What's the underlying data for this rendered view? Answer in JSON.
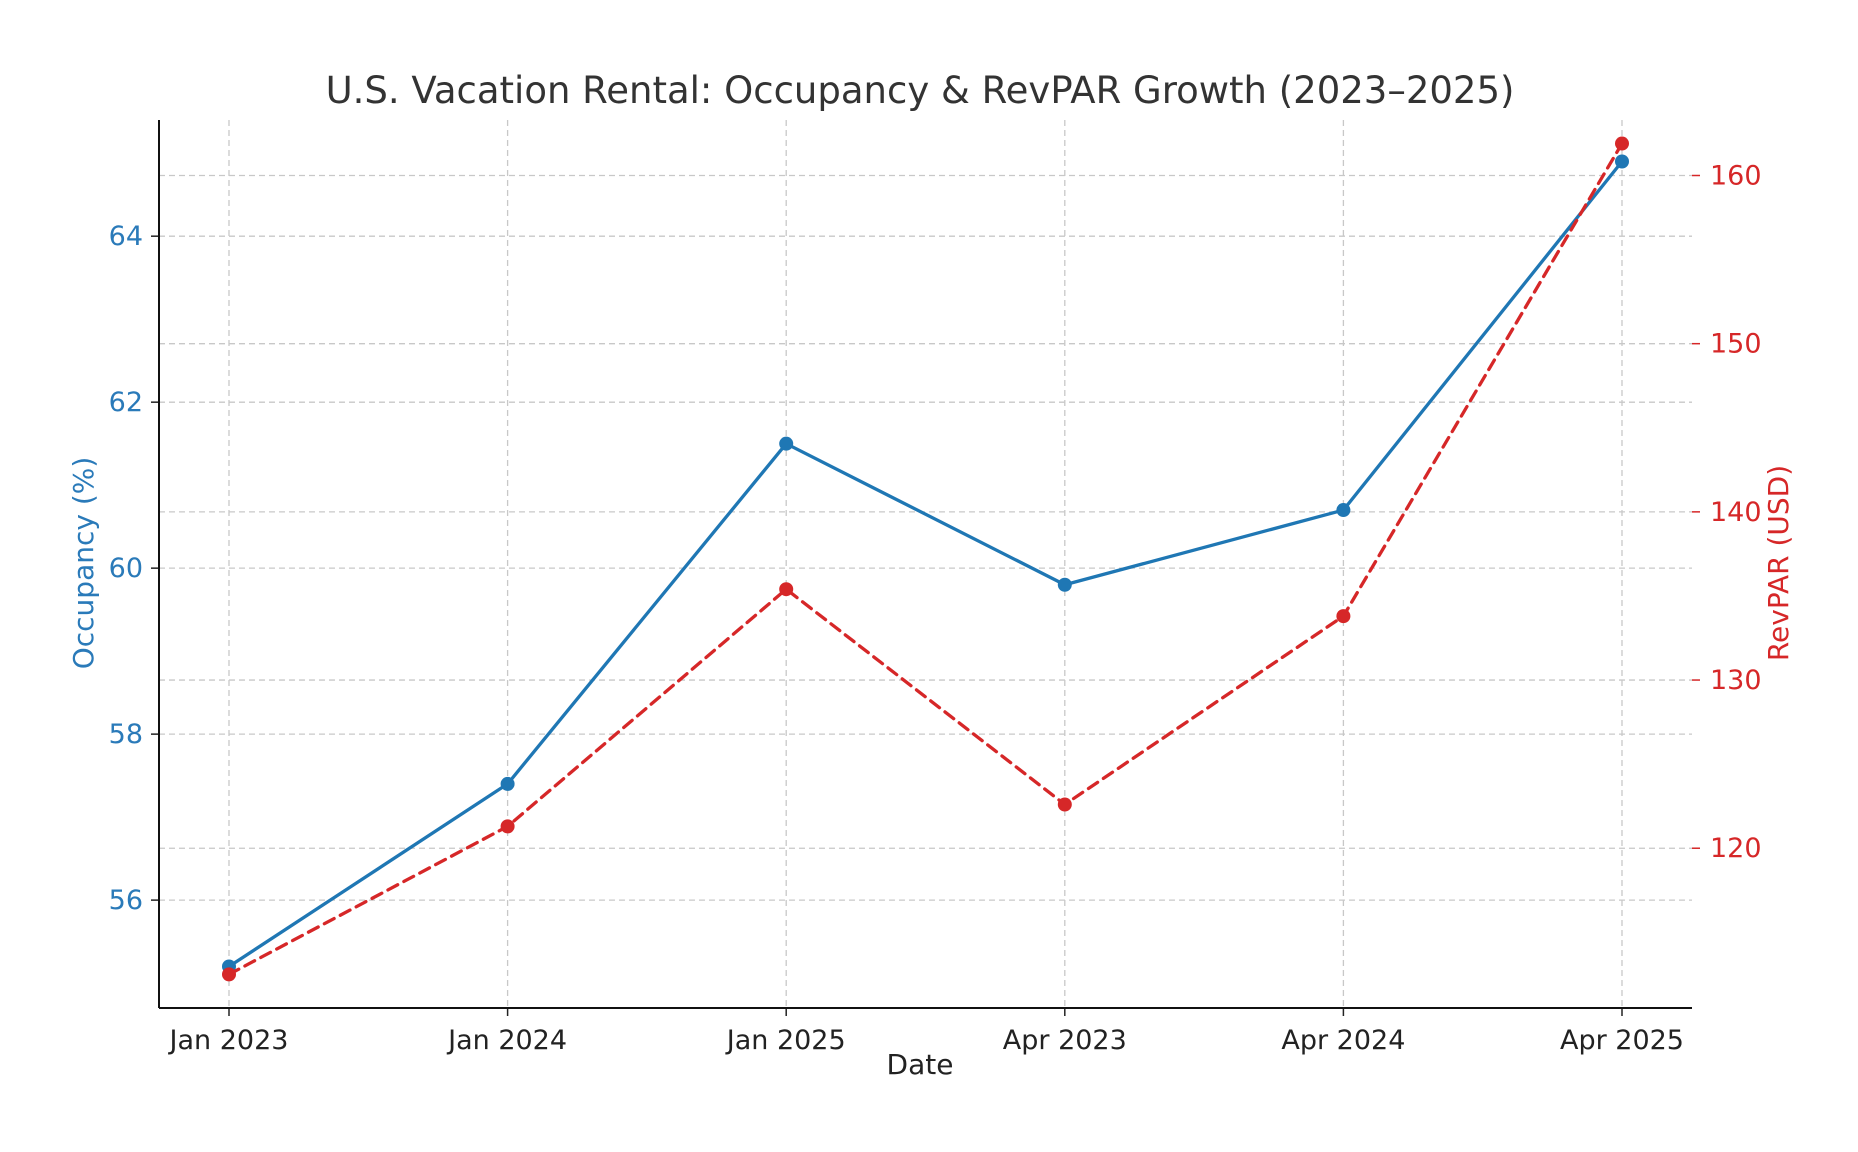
{
  "chart_data": {
    "type": "line",
    "title": "U.S. Vacation Rental: Occupancy & RevPAR Growth (2023–2025)",
    "xlabel": "Date",
    "ylabel_left": "Occupancy (%)",
    "ylabel_right": "RevPAR (USD)",
    "categories": [
      "Jan 2023",
      "Jan 2024",
      "Jan 2025",
      "Apr 2023",
      "Apr 2024",
      "Apr 2025"
    ],
    "series": [
      {
        "name": "",
        "axis": "left",
        "color": "#1f77b4",
        "style": "solid",
        "marker": "circle",
        "values": [
          55.2,
          57.4,
          61.5,
          59.8,
          60.7,
          64.9
        ]
      },
      {
        "name": "",
        "axis": "right",
        "color": "#d62728",
        "style": "dashed",
        "marker": "circle",
        "values": [
          112.5,
          121.3,
          135.4,
          122.6,
          133.8,
          161.9
        ]
      }
    ],
    "ylim_left": [
      54.7,
      65.4
    ],
    "yticks_left": [
      "56",
      "58",
      "60",
      "62",
      "64"
    ],
    "ylim_right": [
      110.5,
      163.3
    ],
    "yticks_right": [
      "120",
      "130",
      "140",
      "150",
      "160"
    ],
    "grid": true,
    "grid_style": "dashed"
  }
}
